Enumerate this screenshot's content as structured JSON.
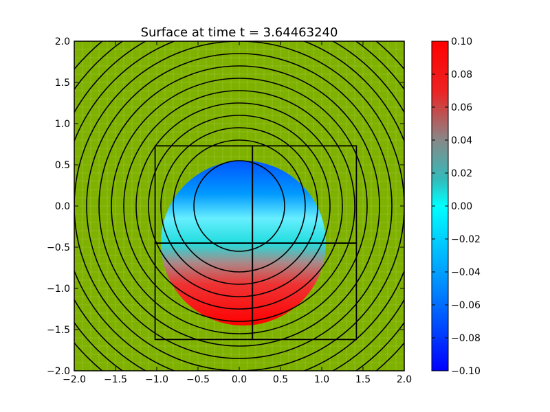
{
  "chart_data": {
    "type": "heatmap",
    "title": "Surface at time t =     3.64463240",
    "xlim": [
      -2.0,
      2.0
    ],
    "ylim": [
      -2.0,
      2.0
    ],
    "xticks": [
      "−2.0",
      "−1.5",
      "−1.0",
      "−0.5",
      "0.0",
      "0.5",
      "1.0",
      "1.5",
      "2.0"
    ],
    "yticks": [
      "2.0",
      "1.5",
      "1.0",
      "0.5",
      "0.0",
      "−0.5",
      "−1.0",
      "−1.5",
      "−2.0"
    ],
    "grid": true,
    "background_color": "#7fb200",
    "surface": {
      "shape": "disk",
      "center": [
        0.05,
        -0.45
      ],
      "radius": 1.0,
      "value_low": -0.1,
      "value_high": 0.1,
      "gradient_direction": "top-to-bottom"
    },
    "contour_circles": {
      "center": [
        0.0,
        0.0
      ],
      "radii": [
        0.55,
        0.8,
        0.95,
        1.1,
        1.25,
        1.4,
        1.55,
        1.7,
        1.85,
        2.0,
        2.15,
        2.3,
        2.45,
        2.6
      ]
    },
    "grid_patches": [
      {
        "x0": -1.02,
        "x1": 0.16,
        "y0": -0.45,
        "y1": 0.73
      },
      {
        "x0": 0.16,
        "x1": 1.42,
        "y0": -0.45,
        "y1": 0.73
      },
      {
        "x0": -1.02,
        "x1": 0.16,
        "y0": -1.62,
        "y1": -0.45
      },
      {
        "x0": 0.16,
        "x1": 1.42,
        "y0": -1.62,
        "y1": -0.45
      }
    ],
    "colorbar": {
      "min": -0.1,
      "max": 0.1,
      "ticks": [
        "0.10",
        "0.08",
        "0.06",
        "0.04",
        "0.02",
        "0.00",
        "−0.02",
        "−0.04",
        "−0.06",
        "−0.08",
        "−0.10"
      ],
      "colors": [
        "#ff0000",
        "#ff1a1a",
        "#8a8a8a",
        "#33cccc",
        "#00ffff",
        "#0066ff",
        "#0000ff"
      ]
    }
  }
}
